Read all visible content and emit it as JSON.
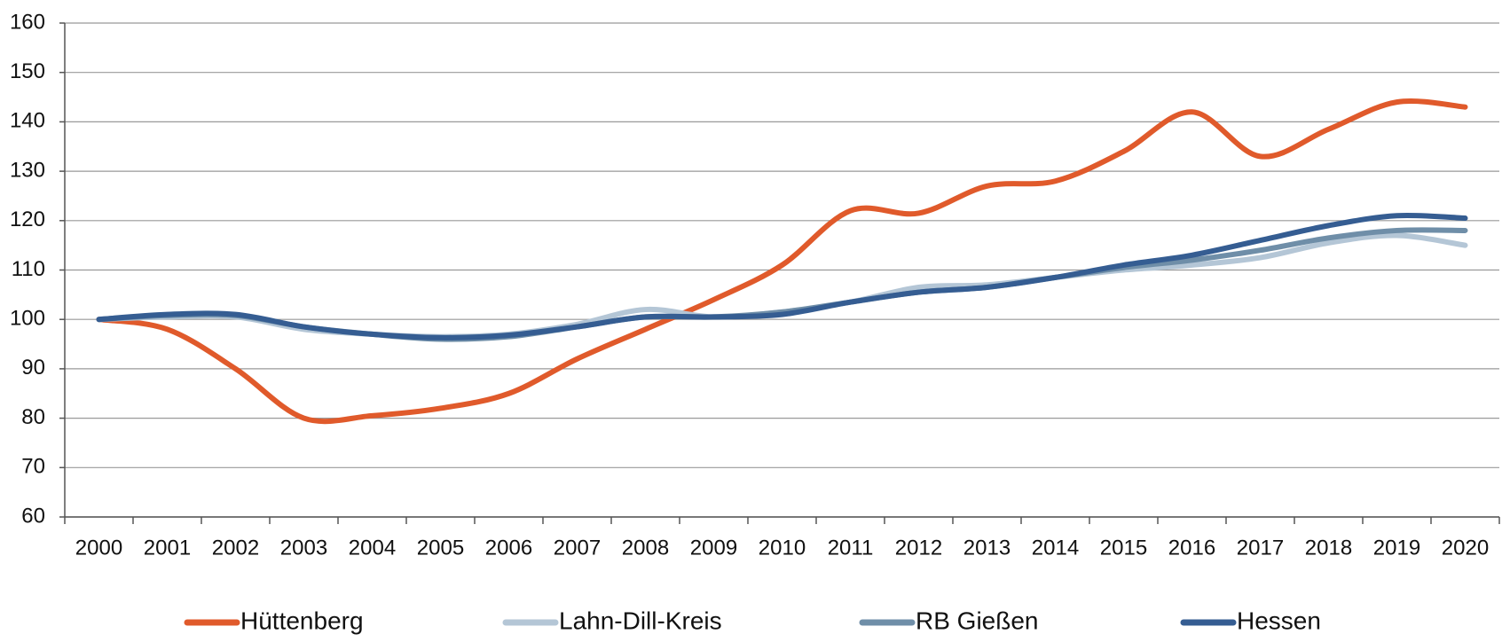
{
  "chart_data": {
    "type": "line",
    "categories": [
      "2000",
      "2001",
      "2002",
      "2003",
      "2004",
      "2005",
      "2006",
      "2007",
      "2008",
      "2009",
      "2010",
      "2011",
      "2012",
      "2013",
      "2014",
      "2015",
      "2016",
      "2017",
      "2018",
      "2019",
      "2020"
    ],
    "series": [
      {
        "name": "Hüttenberg",
        "color": "#e05a2b",
        "values": [
          100,
          98,
          90,
          80,
          80.5,
          82,
          85,
          92,
          98,
          104,
          111,
          122,
          121.5,
          127,
          128,
          134,
          142,
          133,
          138.5,
          144,
          143
        ]
      },
      {
        "name": "Lahn-Dill-Kreis",
        "color": "#b4c6d6",
        "values": [
          100,
          100.5,
          100.5,
          98,
          97,
          96.5,
          97,
          99,
          102,
          100.5,
          101.5,
          103.5,
          106.5,
          107,
          108.5,
          110,
          111,
          112.5,
          115.5,
          117,
          115
        ]
      },
      {
        "name": "RB Gießen",
        "color": "#6f8ea8",
        "values": [
          100,
          100.8,
          100.8,
          98.5,
          97,
          96,
          96.5,
          98.5,
          100.5,
          100.5,
          101.5,
          103.5,
          105.5,
          106.5,
          108.5,
          110.5,
          112,
          114,
          116.5,
          118,
          118
        ]
      },
      {
        "name": "Hessen",
        "color": "#355d92",
        "values": [
          100,
          101,
          101,
          98.5,
          97,
          96.3,
          96.8,
          98.5,
          100.5,
          100.5,
          101,
          103.5,
          105.5,
          106.5,
          108.5,
          111,
          113,
          116,
          119,
          121,
          120.5
        ]
      }
    ],
    "ylim": [
      60,
      160
    ],
    "yticks": [
      60,
      70,
      80,
      90,
      100,
      110,
      120,
      130,
      140,
      150,
      160
    ],
    "grid": true,
    "legend": "bottom"
  }
}
